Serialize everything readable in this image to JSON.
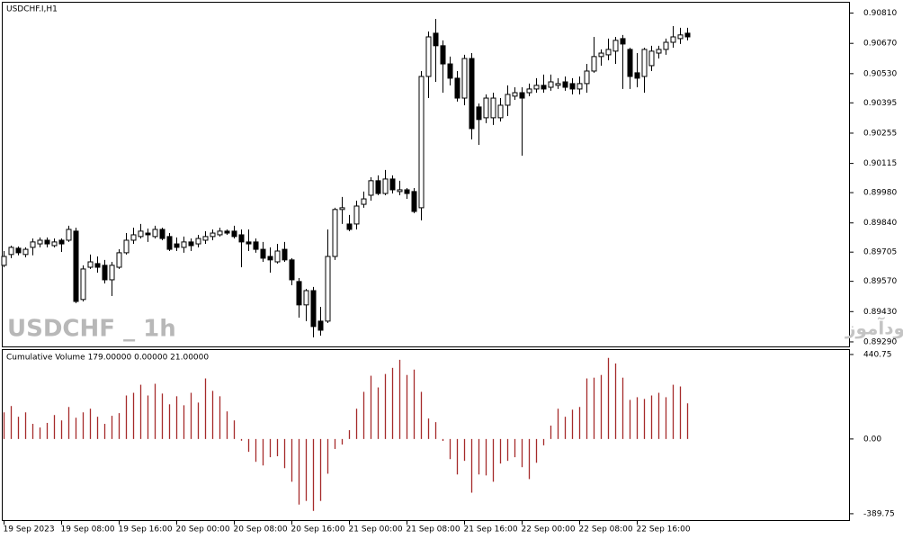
{
  "chart_data": [
    {
      "type": "candlestick",
      "title": "USDCHF.I,H1",
      "annotations": [
        "USDCHF _ 1h",
        "انتشار در سایت سودآموز"
      ],
      "up_color": "#ffffff",
      "down_color": "#000000",
      "open": [
        0.89644,
        0.89694,
        0.89723,
        0.89694,
        0.89727,
        0.89743,
        0.8976,
        0.89735,
        0.8976,
        0.8976,
        0.89802,
        0.89486,
        0.89635,
        0.89652,
        0.89644,
        0.89577,
        0.89635,
        0.89702,
        0.8976,
        0.89777,
        0.89793,
        0.89777,
        0.8981,
        0.89777,
        0.89743,
        0.89727,
        0.89752,
        0.89743,
        0.8976,
        0.89777,
        0.89785,
        0.89802,
        0.89802,
        0.89785,
        0.89752,
        0.89752,
        0.89718,
        0.89685,
        0.8966,
        0.89718,
        0.89669,
        0.89569,
        0.89461,
        0.89527,
        0.89386,
        0.89386,
        0.89685,
        0.89902,
        0.89835,
        0.89835,
        0.89926,
        0.89968,
        0.90035,
        0.89976,
        0.90043,
        0.89985,
        0.89993,
        0.89985,
        0.8991,
        0.90517,
        0.90717,
        0.90659,
        0.90575,
        0.90509,
        0.90417,
        0.906,
        0.90376,
        0.90326,
        0.90326,
        0.90326,
        0.90384,
        0.90426,
        0.90442,
        0.90442,
        0.90459,
        0.90476,
        0.90467,
        0.90476,
        0.90492,
        0.90484,
        0.90459,
        0.90484,
        0.90542,
        0.90609,
        0.90617,
        0.90634,
        0.90692,
        0.90642,
        0.90534,
        0.90517,
        0.90567,
        0.90625,
        0.90642,
        0.90675,
        0.90692,
        0.90717
      ],
      "high": [
        0.8971,
        0.89735,
        0.89731,
        0.89727,
        0.89768,
        0.89773,
        0.89773,
        0.89768,
        0.89768,
        0.89827,
        0.89818,
        0.89644,
        0.89694,
        0.89685,
        0.89669,
        0.8966,
        0.89718,
        0.89793,
        0.89818,
        0.89835,
        0.89814,
        0.89827,
        0.89818,
        0.89793,
        0.89773,
        0.89777,
        0.89768,
        0.89785,
        0.89802,
        0.8981,
        0.89818,
        0.8981,
        0.89827,
        0.8981,
        0.8981,
        0.89768,
        0.89752,
        0.89727,
        0.89743,
        0.89752,
        0.89677,
        0.89585,
        0.89535,
        0.89544,
        0.89452,
        0.8981,
        0.8991,
        0.8996,
        0.89877,
        0.89943,
        0.89985,
        0.90051,
        0.9006,
        0.90085,
        0.9006,
        0.90035,
        0.90001,
        0.90001,
        0.90542,
        0.90725,
        0.90783,
        0.90684,
        0.90609,
        0.90542,
        0.90617,
        0.90625,
        0.90392,
        0.90434,
        0.90442,
        0.90417,
        0.90476,
        0.90467,
        0.90467,
        0.90484,
        0.90509,
        0.90526,
        0.90526,
        0.90509,
        0.90517,
        0.90509,
        0.90517,
        0.90575,
        0.907,
        0.90642,
        0.90692,
        0.907,
        0.90709,
        0.9065,
        0.90625,
        0.9065,
        0.90659,
        0.90659,
        0.90692,
        0.9075,
        0.90742,
        0.90742
      ],
      "low": [
        0.89635,
        0.89677,
        0.8969,
        0.89681,
        0.8969,
        0.89727,
        0.89727,
        0.89727,
        0.89706,
        0.89752,
        0.89469,
        0.89477,
        0.89627,
        0.8961,
        0.8956,
        0.89502,
        0.89627,
        0.89694,
        0.89743,
        0.89768,
        0.89752,
        0.89768,
        0.8976,
        0.8971,
        0.8971,
        0.89702,
        0.8971,
        0.89727,
        0.89743,
        0.8976,
        0.89777,
        0.89785,
        0.89768,
        0.89635,
        0.8971,
        0.89702,
        0.8966,
        0.8961,
        0.89652,
        0.8966,
        0.89552,
        0.89402,
        0.89386,
        0.89311,
        0.89319,
        0.89377,
        0.89669,
        0.89835,
        0.89802,
        0.8981,
        0.8991,
        0.89943,
        0.89968,
        0.89968,
        0.89976,
        0.89968,
        0.89951,
        0.89885,
        0.89852,
        0.90417,
        0.90492,
        0.90442,
        0.90476,
        0.90401,
        0.90384,
        0.90226,
        0.90201,
        0.90301,
        0.90293,
        0.90309,
        0.90334,
        0.90409,
        0.90151,
        0.90426,
        0.90442,
        0.90442,
        0.90451,
        0.90459,
        0.90451,
        0.90434,
        0.90434,
        0.90442,
        0.90534,
        0.90567,
        0.90592,
        0.90575,
        0.90459,
        0.90459,
        0.90467,
        0.90442,
        0.90542,
        0.906,
        0.90617,
        0.9065,
        0.90667,
        0.90684
      ],
      "close": [
        0.89685,
        0.89727,
        0.89702,
        0.89718,
        0.89752,
        0.8976,
        0.89743,
        0.89752,
        0.89743,
        0.8981,
        0.89477,
        0.89627,
        0.8966,
        0.89635,
        0.89577,
        0.89644,
        0.89702,
        0.8976,
        0.89785,
        0.89802,
        0.89785,
        0.8981,
        0.89768,
        0.89718,
        0.89727,
        0.89752,
        0.89735,
        0.89768,
        0.89777,
        0.89793,
        0.89802,
        0.89793,
        0.89777,
        0.89752,
        0.89743,
        0.89718,
        0.89677,
        0.89669,
        0.8971,
        0.89669,
        0.89577,
        0.89461,
        0.89527,
        0.89361,
        0.89344,
        0.89685,
        0.89902,
        0.8991,
        0.8981,
        0.89918,
        0.89951,
        0.90035,
        0.89976,
        0.90043,
        0.89993,
        0.89993,
        0.89976,
        0.89893,
        0.90517,
        0.907,
        0.90659,
        0.90575,
        0.90509,
        0.90417,
        0.906,
        0.90276,
        0.90318,
        0.90417,
        0.90417,
        0.90384,
        0.90434,
        0.90442,
        0.90417,
        0.90459,
        0.90476,
        0.90459,
        0.90492,
        0.90484,
        0.90467,
        0.90459,
        0.90484,
        0.90542,
        0.90609,
        0.90625,
        0.90642,
        0.90684,
        0.90667,
        0.90517,
        0.90509,
        0.90642,
        0.90634,
        0.90642,
        0.90675,
        0.907,
        0.90709,
        0.907
      ],
      "ylim": [
        0.89269,
        0.90858
      ],
      "yticks": [
        {
          "value": 0.9081,
          "label": "0.90810"
        },
        {
          "value": 0.9067,
          "label": "0.90670"
        },
        {
          "value": 0.9053,
          "label": "0.90530"
        },
        {
          "value": 0.90395,
          "label": "0.90395"
        },
        {
          "value": 0.90255,
          "label": "0.90255"
        },
        {
          "value": 0.90115,
          "label": "0.90115"
        },
        {
          "value": 0.8998,
          "label": "0.89980"
        },
        {
          "value": 0.8984,
          "label": "0.89840"
        },
        {
          "value": 0.89705,
          "label": "0.89705"
        },
        {
          "value": 0.8957,
          "label": "0.89570"
        },
        {
          "value": 0.8943,
          "label": "0.89430"
        },
        {
          "value": 0.8929,
          "label": "0.89290"
        }
      ]
    },
    {
      "type": "bar",
      "title": "Cumulative Volume 179.00000 0.00000 21.00000",
      "color": "#a52a2a",
      "categories": [
        "19 Sep 2023",
        null,
        null,
        null,
        null,
        null,
        null,
        null,
        "19 Sep 08:00",
        null,
        null,
        null,
        null,
        null,
        null,
        null,
        "19 Sep 16:00",
        null,
        null,
        null,
        null,
        null,
        null,
        null,
        "20 Sep 00:00",
        null,
        null,
        null,
        null,
        null,
        null,
        null,
        "20 Sep 08:00",
        null,
        null,
        null,
        null,
        null,
        null,
        null,
        "20 Sep 16:00",
        null,
        null,
        null,
        null,
        null,
        null,
        null,
        "21 Sep 00:00",
        null,
        null,
        null,
        null,
        null,
        null,
        null,
        "21 Sep 08:00",
        null,
        null,
        null,
        null,
        null,
        null,
        null,
        "21 Sep 16:00",
        null,
        null,
        null,
        null,
        null,
        null,
        null,
        "22 Sep 00:00",
        null,
        null,
        null,
        null,
        null,
        null,
        null,
        "22 Sep 08:00",
        null,
        null,
        null,
        null,
        null,
        null,
        null,
        "22 Sep 16:00",
        null,
        null,
        null,
        null,
        null,
        null,
        null
      ],
      "values": [
        139,
        172,
        116,
        139,
        79,
        60,
        84,
        125,
        97,
        167,
        111,
        139,
        158,
        116,
        79,
        121,
        135,
        227,
        241,
        283,
        227,
        288,
        237,
        181,
        223,
        176,
        241,
        190,
        316,
        251,
        223,
        144,
        97,
        -9,
        -67,
        -119,
        -138,
        -95,
        -90,
        -152,
        -223,
        -342,
        -323,
        -375,
        -323,
        -181,
        -52,
        -29,
        46,
        158,
        246,
        330,
        269,
        339,
        371,
        413,
        334,
        362,
        246,
        107,
        88,
        -10,
        -105,
        -185,
        -114,
        -280,
        -185,
        -190,
        -223,
        -128,
        -114,
        -95,
        -147,
        -209,
        -124,
        -33,
        70,
        158,
        116,
        153,
        167,
        316,
        320,
        334,
        423,
        394,
        320,
        204,
        218,
        209,
        227,
        241,
        218,
        283,
        274,
        186
      ],
      "ylim": [
        -423,
        464
      ],
      "yticks": [
        440.75,
        {
          "value": 0,
          "label": "0.00"
        },
        -389.75
      ]
    }
  ]
}
